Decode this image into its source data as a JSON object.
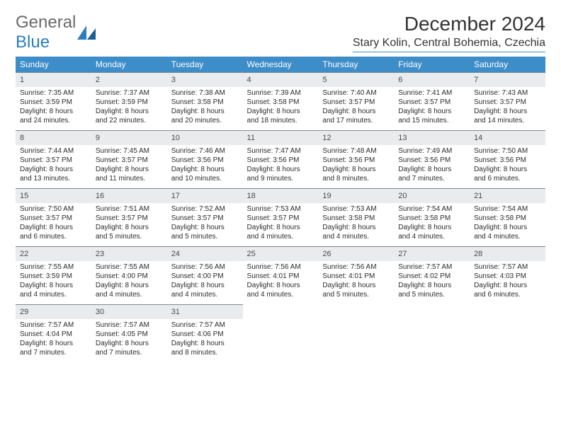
{
  "logo": {
    "text1": "General",
    "text2": "Blue"
  },
  "title": "December 2024",
  "location": "Stary Kolin, Central Bohemia, Czechia",
  "colors": {
    "header_bg": "#3d8dc9",
    "header_text": "#ffffff",
    "daynum_bg": "#e9ebec",
    "daynum_border": "#7a8a99",
    "body_text": "#2c2c2c",
    "logo_gray": "#6a6a6a",
    "logo_blue": "#2a7fbf"
  },
  "day_headers": [
    "Sunday",
    "Monday",
    "Tuesday",
    "Wednesday",
    "Thursday",
    "Friday",
    "Saturday"
  ],
  "weeks": [
    [
      {
        "num": "1",
        "sunrise": "Sunrise: 7:35 AM",
        "sunset": "Sunset: 3:59 PM",
        "day1": "Daylight: 8 hours",
        "day2": "and 24 minutes."
      },
      {
        "num": "2",
        "sunrise": "Sunrise: 7:37 AM",
        "sunset": "Sunset: 3:59 PM",
        "day1": "Daylight: 8 hours",
        "day2": "and 22 minutes."
      },
      {
        "num": "3",
        "sunrise": "Sunrise: 7:38 AM",
        "sunset": "Sunset: 3:58 PM",
        "day1": "Daylight: 8 hours",
        "day2": "and 20 minutes."
      },
      {
        "num": "4",
        "sunrise": "Sunrise: 7:39 AM",
        "sunset": "Sunset: 3:58 PM",
        "day1": "Daylight: 8 hours",
        "day2": "and 18 minutes."
      },
      {
        "num": "5",
        "sunrise": "Sunrise: 7:40 AM",
        "sunset": "Sunset: 3:57 PM",
        "day1": "Daylight: 8 hours",
        "day2": "and 17 minutes."
      },
      {
        "num": "6",
        "sunrise": "Sunrise: 7:41 AM",
        "sunset": "Sunset: 3:57 PM",
        "day1": "Daylight: 8 hours",
        "day2": "and 15 minutes."
      },
      {
        "num": "7",
        "sunrise": "Sunrise: 7:43 AM",
        "sunset": "Sunset: 3:57 PM",
        "day1": "Daylight: 8 hours",
        "day2": "and 14 minutes."
      }
    ],
    [
      {
        "num": "8",
        "sunrise": "Sunrise: 7:44 AM",
        "sunset": "Sunset: 3:57 PM",
        "day1": "Daylight: 8 hours",
        "day2": "and 13 minutes."
      },
      {
        "num": "9",
        "sunrise": "Sunrise: 7:45 AM",
        "sunset": "Sunset: 3:57 PM",
        "day1": "Daylight: 8 hours",
        "day2": "and 11 minutes."
      },
      {
        "num": "10",
        "sunrise": "Sunrise: 7:46 AM",
        "sunset": "Sunset: 3:56 PM",
        "day1": "Daylight: 8 hours",
        "day2": "and 10 minutes."
      },
      {
        "num": "11",
        "sunrise": "Sunrise: 7:47 AM",
        "sunset": "Sunset: 3:56 PM",
        "day1": "Daylight: 8 hours",
        "day2": "and 9 minutes."
      },
      {
        "num": "12",
        "sunrise": "Sunrise: 7:48 AM",
        "sunset": "Sunset: 3:56 PM",
        "day1": "Daylight: 8 hours",
        "day2": "and 8 minutes."
      },
      {
        "num": "13",
        "sunrise": "Sunrise: 7:49 AM",
        "sunset": "Sunset: 3:56 PM",
        "day1": "Daylight: 8 hours",
        "day2": "and 7 minutes."
      },
      {
        "num": "14",
        "sunrise": "Sunrise: 7:50 AM",
        "sunset": "Sunset: 3:56 PM",
        "day1": "Daylight: 8 hours",
        "day2": "and 6 minutes."
      }
    ],
    [
      {
        "num": "15",
        "sunrise": "Sunrise: 7:50 AM",
        "sunset": "Sunset: 3:57 PM",
        "day1": "Daylight: 8 hours",
        "day2": "and 6 minutes."
      },
      {
        "num": "16",
        "sunrise": "Sunrise: 7:51 AM",
        "sunset": "Sunset: 3:57 PM",
        "day1": "Daylight: 8 hours",
        "day2": "and 5 minutes."
      },
      {
        "num": "17",
        "sunrise": "Sunrise: 7:52 AM",
        "sunset": "Sunset: 3:57 PM",
        "day1": "Daylight: 8 hours",
        "day2": "and 5 minutes."
      },
      {
        "num": "18",
        "sunrise": "Sunrise: 7:53 AM",
        "sunset": "Sunset: 3:57 PM",
        "day1": "Daylight: 8 hours",
        "day2": "and 4 minutes."
      },
      {
        "num": "19",
        "sunrise": "Sunrise: 7:53 AM",
        "sunset": "Sunset: 3:58 PM",
        "day1": "Daylight: 8 hours",
        "day2": "and 4 minutes."
      },
      {
        "num": "20",
        "sunrise": "Sunrise: 7:54 AM",
        "sunset": "Sunset: 3:58 PM",
        "day1": "Daylight: 8 hours",
        "day2": "and 4 minutes."
      },
      {
        "num": "21",
        "sunrise": "Sunrise: 7:54 AM",
        "sunset": "Sunset: 3:58 PM",
        "day1": "Daylight: 8 hours",
        "day2": "and 4 minutes."
      }
    ],
    [
      {
        "num": "22",
        "sunrise": "Sunrise: 7:55 AM",
        "sunset": "Sunset: 3:59 PM",
        "day1": "Daylight: 8 hours",
        "day2": "and 4 minutes."
      },
      {
        "num": "23",
        "sunrise": "Sunrise: 7:55 AM",
        "sunset": "Sunset: 4:00 PM",
        "day1": "Daylight: 8 hours",
        "day2": "and 4 minutes."
      },
      {
        "num": "24",
        "sunrise": "Sunrise: 7:56 AM",
        "sunset": "Sunset: 4:00 PM",
        "day1": "Daylight: 8 hours",
        "day2": "and 4 minutes."
      },
      {
        "num": "25",
        "sunrise": "Sunrise: 7:56 AM",
        "sunset": "Sunset: 4:01 PM",
        "day1": "Daylight: 8 hours",
        "day2": "and 4 minutes."
      },
      {
        "num": "26",
        "sunrise": "Sunrise: 7:56 AM",
        "sunset": "Sunset: 4:01 PM",
        "day1": "Daylight: 8 hours",
        "day2": "and 5 minutes."
      },
      {
        "num": "27",
        "sunrise": "Sunrise: 7:57 AM",
        "sunset": "Sunset: 4:02 PM",
        "day1": "Daylight: 8 hours",
        "day2": "and 5 minutes."
      },
      {
        "num": "28",
        "sunrise": "Sunrise: 7:57 AM",
        "sunset": "Sunset: 4:03 PM",
        "day1": "Daylight: 8 hours",
        "day2": "and 6 minutes."
      }
    ],
    [
      {
        "num": "29",
        "sunrise": "Sunrise: 7:57 AM",
        "sunset": "Sunset: 4:04 PM",
        "day1": "Daylight: 8 hours",
        "day2": "and 7 minutes."
      },
      {
        "num": "30",
        "sunrise": "Sunrise: 7:57 AM",
        "sunset": "Sunset: 4:05 PM",
        "day1": "Daylight: 8 hours",
        "day2": "and 7 minutes."
      },
      {
        "num": "31",
        "sunrise": "Sunrise: 7:57 AM",
        "sunset": "Sunset: 4:06 PM",
        "day1": "Daylight: 8 hours",
        "day2": "and 8 minutes."
      },
      null,
      null,
      null,
      null
    ]
  ]
}
